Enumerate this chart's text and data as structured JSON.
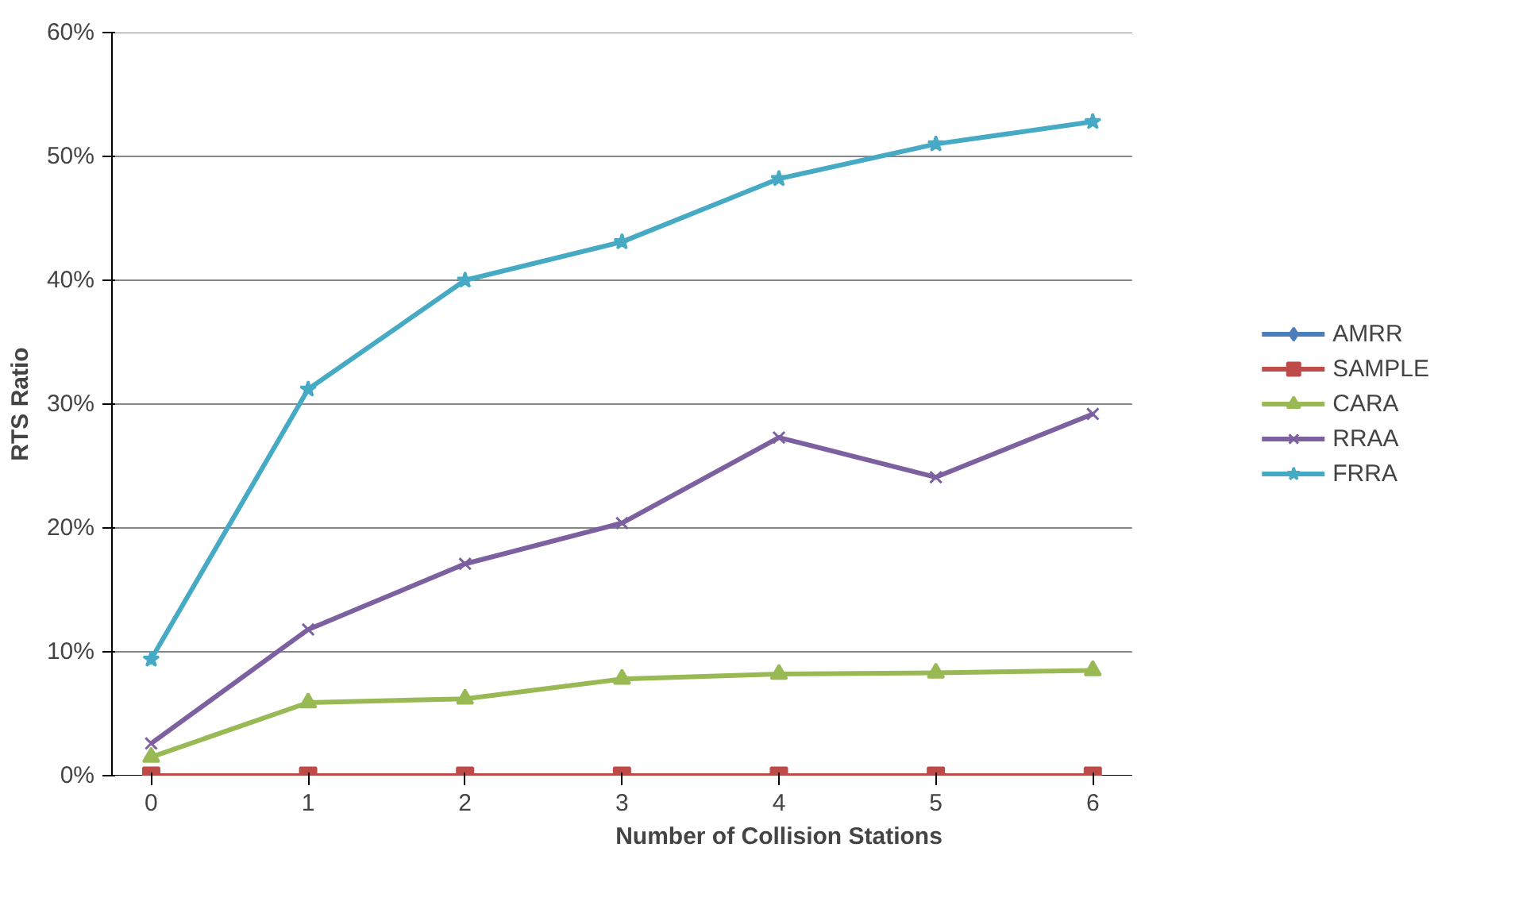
{
  "chart_data": {
    "type": "line",
    "xlabel": "Number of Collision Stations",
    "ylabel": "RTS Ratio",
    "categories": [
      "0",
      "1",
      "2",
      "3",
      "4",
      "5",
      "6"
    ],
    "ylim": [
      0,
      60
    ],
    "yticks": [
      {
        "value": 0,
        "label": "0%"
      },
      {
        "value": 10,
        "label": "10%"
      },
      {
        "value": 20,
        "label": "20%"
      },
      {
        "value": 30,
        "label": "30%"
      },
      {
        "value": 40,
        "label": "40%"
      },
      {
        "value": 50,
        "label": "50%"
      },
      {
        "value": 60,
        "label": "60%"
      }
    ],
    "grid": "y",
    "legend": "right",
    "series": [
      {
        "name": "AMRR",
        "color": "#4a7ebb",
        "marker": "diamond",
        "values": [
          null,
          null,
          null,
          null,
          null,
          null,
          null
        ]
      },
      {
        "name": "SAMPLE",
        "color": "#be4b48",
        "marker": "square",
        "values": [
          0,
          0,
          0,
          0,
          0,
          0,
          0
        ]
      },
      {
        "name": "CARA",
        "color": "#98b954",
        "marker": "triangle",
        "values": [
          1.5,
          5.9,
          6.2,
          7.8,
          8.2,
          8.3,
          8.5
        ]
      },
      {
        "name": "RRAA",
        "color": "#7d60a0",
        "marker": "cross",
        "values": [
          2.6,
          11.8,
          17.1,
          20.4,
          27.3,
          24.1,
          29.2
        ]
      },
      {
        "name": "FRRA",
        "color": "#46aac5",
        "marker": "star",
        "values": [
          9.4,
          31.2,
          40.0,
          43.1,
          48.2,
          51.0,
          52.8
        ]
      }
    ]
  }
}
